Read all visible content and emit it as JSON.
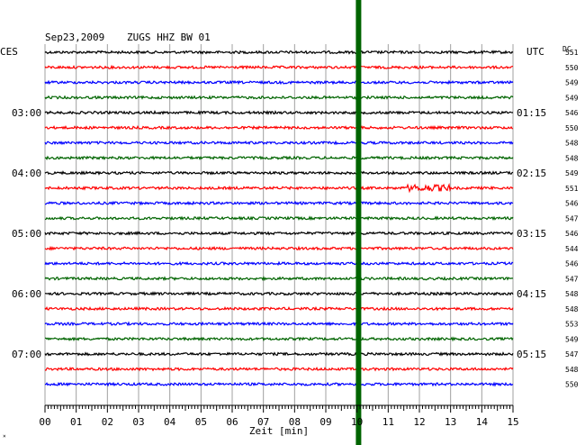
{
  "header": {
    "date": "Sep23,2009",
    "station": "ZUGS HHZ BW 01",
    "left_tz": "CES",
    "right_tz": "UTC",
    "dc_label": "DC"
  },
  "colors": {
    "trace_cycle": [
      "#000000",
      "#ff0000",
      "#0000ff",
      "#006400"
    ],
    "marker": "#006400",
    "grid": "#a0a0a0"
  },
  "chart_data": {
    "type": "line",
    "title": "Sep23,2009   ZUGS HHZ BW 01",
    "xlabel": "Zeit [min]",
    "xlim": [
      0,
      15
    ],
    "x_ticks": [
      "00",
      "01",
      "02",
      "03",
      "04",
      "05",
      "06",
      "07",
      "08",
      "09",
      "10",
      "11",
      "12",
      "13",
      "14",
      "15"
    ],
    "left_time_labels": [
      {
        "row": 4,
        "text": "03:00"
      },
      {
        "row": 8,
        "text": "04:00"
      },
      {
        "row": 12,
        "text": "05:00"
      },
      {
        "row": 16,
        "text": "06:00"
      },
      {
        "row": 20,
        "text": "07:00"
      }
    ],
    "right_time_labels": [
      {
        "row": 4,
        "text": "01:15"
      },
      {
        "row": 8,
        "text": "02:15"
      },
      {
        "row": 12,
        "text": "03:15"
      },
      {
        "row": 16,
        "text": "04:15"
      },
      {
        "row": 20,
        "text": "05:15"
      }
    ],
    "dc_offsets": [
      551,
      550,
      549,
      549,
      546,
      550,
      548,
      548,
      549,
      551,
      546,
      547,
      546,
      544,
      546,
      547,
      548,
      548,
      553,
      549,
      547,
      548,
      550
    ],
    "marker_minute": 10.05,
    "event": {
      "row": 9,
      "from_minute": 11.6,
      "to_minute": 13.0
    }
  }
}
